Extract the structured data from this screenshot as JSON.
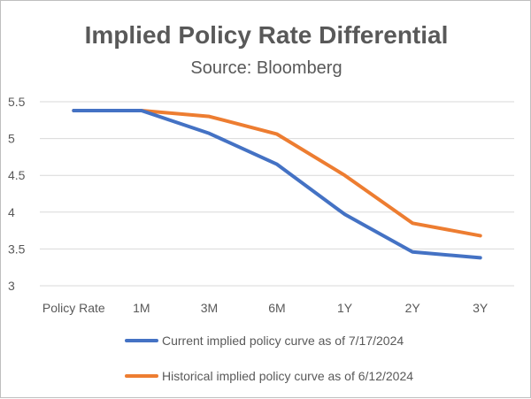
{
  "chart_data": {
    "type": "line",
    "title": "Implied Policy Rate Differential",
    "subtitle": "Source: Bloomberg",
    "categories": [
      "Policy Rate",
      "1M",
      "3M",
      "6M",
      "1Y",
      "2Y",
      "3Y"
    ],
    "ylim": [
      3,
      5.5
    ],
    "yticks": [
      "3",
      "3.5",
      "4",
      "4.5",
      "5",
      "5.5"
    ],
    "grid": true,
    "legend_position": "bottom",
    "series": [
      {
        "name": "Current implied policy curve as of 7/17/2024",
        "color": "#4472C4",
        "values": [
          5.38,
          5.38,
          5.07,
          4.65,
          3.97,
          3.46,
          3.38
        ]
      },
      {
        "name": "Historical implied policy curve as of 6/12/2024",
        "color": "#ED7D31",
        "values": [
          5.38,
          5.38,
          5.3,
          5.06,
          4.5,
          3.85,
          3.68
        ]
      }
    ]
  }
}
